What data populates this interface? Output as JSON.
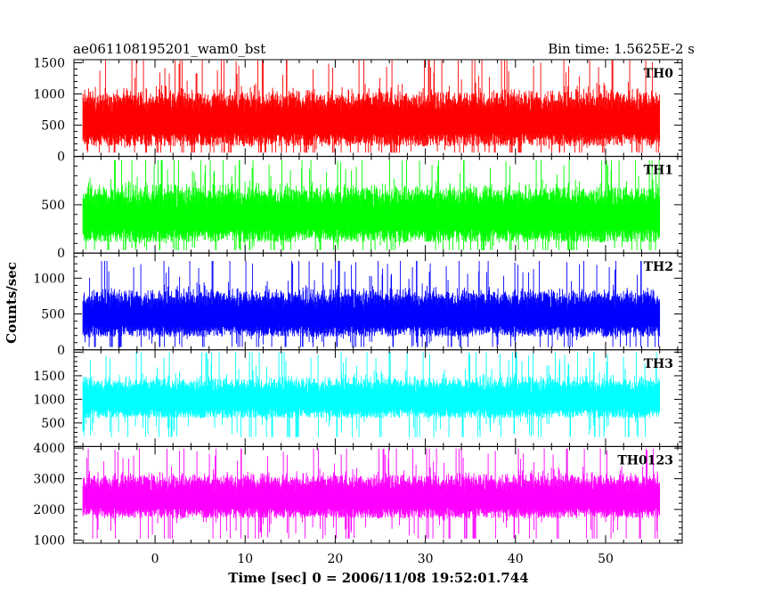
{
  "header": {
    "left": "ae061108195201_wam0_bst",
    "right": "Bin time: 1.5625E-2 s"
  },
  "chart_data": {
    "type": "line",
    "xlabel": "Time [sec] 0 = 2006/11/08 19:52:01.744",
    "ylabel": "Counts/sec",
    "xlim": [
      -9,
      58.5
    ],
    "xticks": [
      0,
      10,
      20,
      30,
      40,
      50
    ],
    "x_range_data": [
      -8,
      56
    ],
    "bin_time_s": 0.015625,
    "panels": [
      {
        "name": "TH0",
        "color": "#ff0000",
        "ylim": [
          0,
          1550
        ],
        "yticks": [
          0,
          500,
          1000,
          1500
        ],
        "baseline": 680,
        "spread": 260,
        "peak_max": 1540,
        "low_min": 60
      },
      {
        "name": "TH1",
        "color": "#00ff00",
        "ylim": [
          0,
          1000
        ],
        "yticks": [
          0,
          500
        ],
        "baseline": 450,
        "spread": 170,
        "peak_max": 960,
        "low_min": 30
      },
      {
        "name": "TH2",
        "color": "#0000ff",
        "ylim": [
          0,
          1350
        ],
        "yticks": [
          0,
          500,
          1000
        ],
        "baseline": 560,
        "spread": 190,
        "peak_max": 1240,
        "low_min": 40
      },
      {
        "name": "TH3",
        "color": "#00ffff",
        "ylim": [
          0,
          2050
        ],
        "yticks": [
          500,
          1000,
          1500
        ],
        "baseline": 1100,
        "spread": 250,
        "peak_max": 2000,
        "low_min": 200
      },
      {
        "name": "TH0123",
        "color": "#ff00ff",
        "ylim": [
          900,
          4050
        ],
        "yticks": [
          1000,
          2000,
          3000,
          4000
        ],
        "baseline": 2550,
        "spread": 420,
        "peak_max": 3980,
        "low_min": 1050
      }
    ]
  }
}
